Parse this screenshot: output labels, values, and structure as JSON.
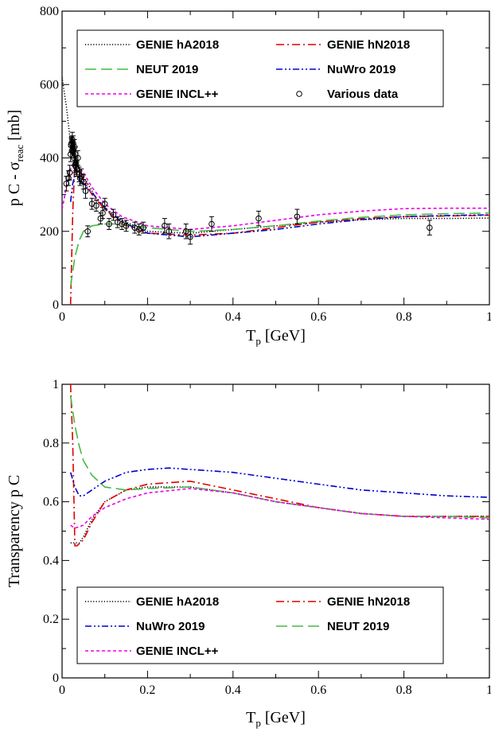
{
  "chart_data": [
    {
      "type": "line",
      "xlabel_main": "T",
      "xlabel_sub": "p",
      "xlabel_unit": " [GeV]",
      "ylabel_main": "p C - σ",
      "ylabel_sub": "reac",
      "ylabel_unit": " [mb]",
      "xlim": [
        0,
        1
      ],
      "ylim": [
        0,
        800
      ],
      "xticks": [
        0,
        0.2,
        0.4,
        0.6,
        0.8,
        1
      ],
      "xtick_labels": [
        "0",
        "0.2",
        "0.4",
        "0.6",
        "0.8",
        "1"
      ],
      "yticks": [
        0,
        200,
        400,
        600,
        800
      ],
      "ytick_labels": [
        "0",
        "200",
        "400",
        "600",
        "800"
      ],
      "grid": false,
      "legend_position": "top",
      "series": [
        {
          "name": "GENIE hA2018",
          "color": "#000000",
          "dash": "dotted",
          "x": [
            0.0,
            0.01,
            0.02,
            0.03,
            0.04,
            0.06,
            0.08,
            0.1,
            0.14,
            0.2,
            0.3,
            0.4,
            0.5,
            0.6,
            0.7,
            0.8,
            0.9,
            1.0
          ],
          "y": [
            620,
            540,
            440,
            400,
            370,
            330,
            290,
            260,
            230,
            200,
            195,
            205,
            215,
            225,
            232,
            235,
            235,
            236
          ]
        },
        {
          "name": "GENIE hN2018",
          "color": "#e00000",
          "dash": "dashdot",
          "x": [
            0.02,
            0.025,
            0.03,
            0.035,
            0.04,
            0.05,
            0.07,
            0.1,
            0.14,
            0.2,
            0.3,
            0.4,
            0.5,
            0.6,
            0.7,
            0.8,
            0.9,
            1.0
          ],
          "y": [
            0,
            250,
            390,
            390,
            370,
            340,
            300,
            260,
            220,
            195,
            190,
            195,
            210,
            225,
            235,
            240,
            242,
            244
          ]
        },
        {
          "name": "NEUT 2019",
          "color": "#44bb44",
          "dash": "longdash",
          "x": [
            0.02,
            0.03,
            0.04,
            0.05,
            0.07,
            0.1,
            0.14,
            0.2,
            0.3,
            0.4,
            0.5,
            0.6,
            0.7,
            0.8,
            0.9,
            1.0
          ],
          "y": [
            50,
            130,
            175,
            200,
            215,
            220,
            220,
            210,
            200,
            205,
            215,
            228,
            238,
            245,
            248,
            250
          ]
        },
        {
          "name": "NuWro 2019",
          "color": "#0000cc",
          "dash": "dashdotdot",
          "x": [
            0.02,
            0.025,
            0.03,
            0.04,
            0.05,
            0.07,
            0.1,
            0.14,
            0.2,
            0.3,
            0.4,
            0.5,
            0.6,
            0.7,
            0.8,
            0.9,
            1.0
          ],
          "y": [
            280,
            330,
            350,
            345,
            330,
            305,
            265,
            225,
            195,
            185,
            195,
            205,
            220,
            232,
            240,
            243,
            245
          ]
        },
        {
          "name": "GENIE INCL++",
          "color": "#ee00ee",
          "dash": "shortdash",
          "x": [
            0.0,
            0.01,
            0.02,
            0.03,
            0.05,
            0.07,
            0.1,
            0.14,
            0.2,
            0.3,
            0.4,
            0.5,
            0.6,
            0.7,
            0.8,
            0.9,
            1.0
          ],
          "y": [
            260,
            320,
            370,
            385,
            360,
            320,
            275,
            240,
            215,
            205,
            215,
            230,
            245,
            255,
            262,
            263,
            263
          ]
        }
      ],
      "points": {
        "name": "Various data",
        "x": [
          0.01,
          0.015,
          0.018,
          0.02,
          0.021,
          0.022,
          0.023,
          0.024,
          0.025,
          0.026,
          0.027,
          0.028,
          0.029,
          0.03,
          0.031,
          0.032,
          0.033,
          0.035,
          0.037,
          0.04,
          0.042,
          0.045,
          0.05,
          0.055,
          0.06,
          0.07,
          0.08,
          0.09,
          0.095,
          0.1,
          0.11,
          0.12,
          0.13,
          0.14,
          0.15,
          0.17,
          0.18,
          0.19,
          0.24,
          0.25,
          0.29,
          0.3,
          0.35,
          0.46,
          0.55,
          0.86
        ],
        "y": [
          330,
          345,
          360,
          410,
          435,
          440,
          420,
          450,
          430,
          440,
          420,
          400,
          430,
          380,
          410,
          385,
          375,
          370,
          400,
          355,
          345,
          350,
          335,
          310,
          200,
          275,
          270,
          235,
          250,
          275,
          220,
          245,
          225,
          220,
          215,
          210,
          205,
          210,
          215,
          200,
          200,
          185,
          220,
          235,
          240,
          210
        ],
        "err": [
          20,
          20,
          20,
          20,
          20,
          20,
          20,
          20,
          20,
          20,
          20,
          20,
          20,
          20,
          20,
          20,
          20,
          20,
          20,
          20,
          20,
          20,
          20,
          20,
          15,
          15,
          15,
          15,
          15,
          15,
          15,
          15,
          15,
          15,
          15,
          15,
          15,
          15,
          20,
          20,
          20,
          20,
          20,
          20,
          20,
          20
        ]
      },
      "legend": [
        {
          "label": "GENIE hA2018",
          "series": 0
        },
        {
          "label": "GENIE hN2018",
          "series": 1
        },
        {
          "label": "NEUT 2019",
          "series": 2
        },
        {
          "label": "NuWro 2019",
          "series": 3
        },
        {
          "label": "GENIE INCL++",
          "series": 4
        },
        {
          "label": "Various data",
          "series": "points"
        }
      ]
    },
    {
      "type": "line",
      "xlabel_main": "T",
      "xlabel_sub": "p",
      "xlabel_unit": " [GeV]",
      "ylabel_main": "Transparency p C",
      "ylabel_sub": "",
      "ylabel_unit": "",
      "xlim": [
        0,
        1
      ],
      "ylim": [
        0,
        1
      ],
      "xticks": [
        0,
        0.2,
        0.4,
        0.6,
        0.8,
        1
      ],
      "xtick_labels": [
        "0",
        "0.2",
        "0.4",
        "0.6",
        "0.8",
        "1"
      ],
      "yticks": [
        0,
        0.2,
        0.4,
        0.6,
        0.8,
        1
      ],
      "ytick_labels": [
        "0",
        "0.2",
        "0.4",
        "0.6",
        "0.8",
        "1"
      ],
      "grid": false,
      "legend_position": "bottom",
      "series": [
        {
          "name": "GENIE hA2018",
          "color": "#000000",
          "dash": "dotted",
          "x": [
            0.02,
            0.03,
            0.04,
            0.05,
            0.07,
            0.1,
            0.15,
            0.2,
            0.3,
            0.4,
            0.5,
            0.6,
            0.7,
            0.8,
            0.9,
            1.0
          ],
          "y": [
            0.46,
            0.46,
            0.46,
            0.48,
            0.54,
            0.6,
            0.64,
            0.65,
            0.65,
            0.63,
            0.6,
            0.58,
            0.56,
            0.55,
            0.55,
            0.55
          ]
        },
        {
          "name": "GENIE hN2018",
          "color": "#e00000",
          "dash": "dashdot",
          "x": [
            0.02,
            0.025,
            0.03,
            0.035,
            0.05,
            0.07,
            0.1,
            0.15,
            0.2,
            0.3,
            0.4,
            0.5,
            0.6,
            0.7,
            0.8,
            0.9,
            1.0
          ],
          "y": [
            1.0,
            0.8,
            0.45,
            0.45,
            0.47,
            0.53,
            0.6,
            0.64,
            0.66,
            0.67,
            0.64,
            0.61,
            0.58,
            0.56,
            0.55,
            0.55,
            0.55
          ]
        },
        {
          "name": "NuWro 2019",
          "color": "#0000cc",
          "dash": "dashdotdot",
          "x": [
            0.02,
            0.03,
            0.04,
            0.05,
            0.07,
            0.1,
            0.15,
            0.2,
            0.25,
            0.3,
            0.4,
            0.5,
            0.6,
            0.7,
            0.8,
            0.9,
            1.0
          ],
          "y": [
            0.7,
            0.65,
            0.62,
            0.62,
            0.64,
            0.67,
            0.7,
            0.71,
            0.715,
            0.71,
            0.7,
            0.68,
            0.66,
            0.64,
            0.63,
            0.62,
            0.615
          ]
        },
        {
          "name": "NEUT 2019",
          "color": "#44bb44",
          "dash": "longdash",
          "x": [
            0.02,
            0.03,
            0.04,
            0.05,
            0.07,
            0.1,
            0.15,
            0.2,
            0.3,
            0.4,
            0.5,
            0.6,
            0.7,
            0.8,
            0.9,
            1.0
          ],
          "y": [
            0.96,
            0.86,
            0.79,
            0.74,
            0.69,
            0.65,
            0.64,
            0.645,
            0.65,
            0.63,
            0.6,
            0.58,
            0.56,
            0.55,
            0.55,
            0.545
          ]
        },
        {
          "name": "GENIE INCL++",
          "color": "#ee00ee",
          "dash": "shortdash",
          "x": [
            0.02,
            0.03,
            0.05,
            0.07,
            0.1,
            0.15,
            0.2,
            0.3,
            0.4,
            0.5,
            0.6,
            0.7,
            0.8,
            0.9,
            1.0
          ],
          "y": [
            0.52,
            0.51,
            0.52,
            0.55,
            0.58,
            0.61,
            0.63,
            0.645,
            0.63,
            0.6,
            0.58,
            0.56,
            0.55,
            0.545,
            0.54
          ]
        }
      ],
      "legend": [
        {
          "label": "GENIE hA2018",
          "series": 0
        },
        {
          "label": "GENIE hN2018",
          "series": 1
        },
        {
          "label": "NuWro 2019",
          "series": 2
        },
        {
          "label": "NEUT 2019",
          "series": 3
        },
        {
          "label": "GENIE INCL++",
          "series": 4
        }
      ]
    }
  ]
}
